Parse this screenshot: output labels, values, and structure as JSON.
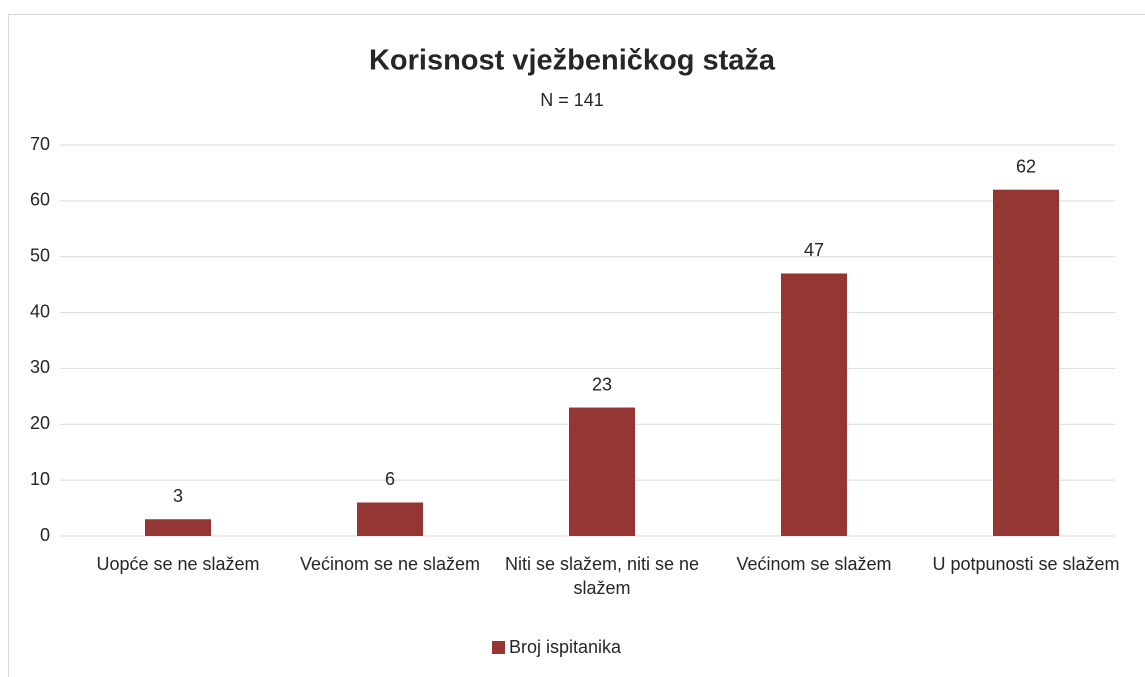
{
  "chart_data": {
    "type": "bar",
    "title": "Korisnost vježbeničkog staža",
    "subtitle": "N = 141",
    "categories": [
      "Uopće se ne slažem",
      "Većinom se ne slažem",
      "Niti se slažem, niti se ne slažem",
      "Većinom se slažem",
      "U potpunosti se slažem"
    ],
    "series": [
      {
        "name": "Broj ispitanika",
        "color": "#943634",
        "values": [
          3,
          6,
          23,
          47,
          62
        ]
      }
    ],
    "ylim": [
      0,
      70
    ],
    "yticks": [
      0,
      10,
      20,
      30,
      40,
      50,
      60,
      70
    ],
    "grid": true,
    "legend": "bottom"
  }
}
